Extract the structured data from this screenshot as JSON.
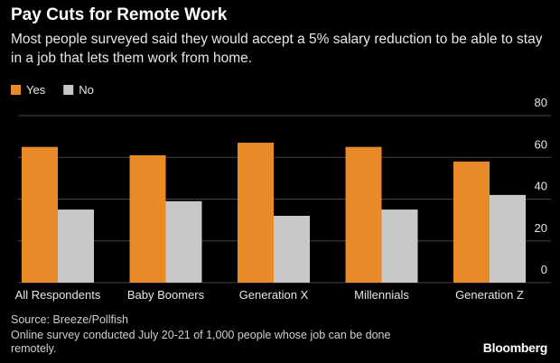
{
  "chart_data": {
    "type": "bar",
    "title": "Pay Cuts for Remote Work",
    "subtitle": "Most people surveyed said they would accept a 5% salary reduction to be able to stay in a job that lets them work from home.",
    "categories": [
      "All Respondents",
      "Baby Boomers",
      "Generation X",
      "Millennials",
      "Generation Z"
    ],
    "series": [
      {
        "name": "Yes",
        "color": "#e8892a",
        "values": [
          65,
          61,
          67,
          65,
          58
        ]
      },
      {
        "name": "No",
        "color": "#c8c8c8",
        "values": [
          35,
          39,
          32,
          35,
          42
        ]
      }
    ],
    "ylim": [
      0,
      80
    ],
    "yticks": [
      0,
      20,
      40,
      60,
      80
    ],
    "grid": true,
    "source": "Source: Breeze/Pollfish",
    "note": "Online survey conducted July 20-21 of 1,000 people whose job can be done remotely.",
    "brand": "Bloomberg"
  }
}
